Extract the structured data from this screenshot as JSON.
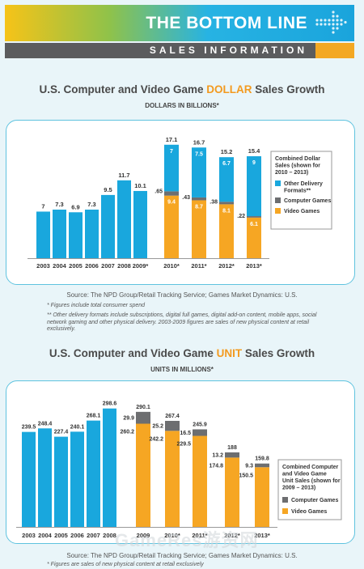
{
  "header": {
    "title": "THE BOTTOM LINE",
    "subtitle": "SALES INFORMATION"
  },
  "colors": {
    "blue": "#19a7dd",
    "orange": "#f6a623",
    "gray": "#6d6e70",
    "frame": "#5fc3df"
  },
  "chart1": {
    "title_pre": "U.S. Computer and Video Game ",
    "title_hl": "DOLLAR",
    "title_post": " Sales Growth",
    "subtitle": "DOLLARS IN BILLIONS*",
    "source": "Source: The NPD Group/Retail Tracking Service; Games Market Dynamics: U.S.",
    "note1": "*  Figures include total consumer spend",
    "note2": "**  Other delivery formats include subscriptions, digital full games, digital add-on content, mobile apps, social network gaming and other physical delivery. 2003-2009 figures are sales of new physical content at retail exclusively.",
    "legend": {
      "title": "Combined Dollar Sales (shown for 2010 – 2013)",
      "items": [
        {
          "label": "Other Delivery Formats**",
          "color": "#19a7dd"
        },
        {
          "label": "Computer Games",
          "color": "#6d6e70"
        },
        {
          "label": "Video Games",
          "color": "#f6a623"
        }
      ]
    }
  },
  "chart2": {
    "title_pre": "U.S. Computer and Video Game ",
    "title_hl": "UNIT",
    "title_post": " Sales Growth",
    "subtitle": "UNITS IN MILLIONS*",
    "source": "Source: The NPD Group/Retail Tracking Service; Games Market Dynamics: U.S.",
    "note1": "*  Figures are sales of new physical content at retail exclusively",
    "legend": {
      "title": "Combined Computer and Video Game Unit Sales (shown for 2009 – 2013)",
      "items": [
        {
          "label": "Computer Games",
          "color": "#6d6e70"
        },
        {
          "label": "Video Games",
          "color": "#f6a623"
        }
      ]
    }
  },
  "watermark": "GameRes游资网",
  "chart_data": [
    {
      "type": "bar",
      "title": "U.S. Computer and Video Game DOLLAR Sales Growth",
      "ylabel": "DOLLARS IN BILLIONS*",
      "ylim": [
        0,
        18
      ],
      "categories": [
        "2003",
        "2004",
        "2005",
        "2006",
        "2007",
        "2008",
        "2009*",
        "2010*",
        "2011*",
        "2012*",
        "2013*"
      ],
      "totals": [
        "7",
        "7.3",
        "6.9",
        "7.3",
        "9.5",
        "11.7",
        "10.1",
        "17.1",
        "16.7",
        "15.2",
        "15.4"
      ],
      "series": [
        {
          "name": "Total",
          "values": [
            7,
            7.3,
            6.9,
            7.3,
            9.5,
            11.7,
            10.1,
            null,
            null,
            null,
            null
          ]
        },
        {
          "name": "Video Games",
          "values": [
            null,
            null,
            null,
            null,
            null,
            null,
            null,
            9.4,
            8.7,
            8.1,
            6.1
          ]
        },
        {
          "name": "Computer Games",
          "values": [
            null,
            null,
            null,
            null,
            null,
            null,
            null,
            0.65,
            0.43,
            0.38,
            0.22
          ]
        },
        {
          "name": "Other Delivery Formats**",
          "values": [
            null,
            null,
            null,
            null,
            null,
            null,
            null,
            7,
            7.5,
            6.7,
            9
          ]
        }
      ],
      "segment_labels": {
        "Video Games": [
          "9.4",
          "8.7",
          "8.1",
          "6.1"
        ],
        "Computer Games": [
          ".65",
          ".43",
          ".38",
          ".22"
        ],
        "Other Delivery Formats**": [
          "7",
          "7.5",
          "6.7",
          "9"
        ]
      }
    },
    {
      "type": "bar",
      "title": "U.S. Computer and Video Game UNIT Sales Growth",
      "ylabel": "UNITS IN MILLIONS*",
      "ylim": [
        0,
        300
      ],
      "categories": [
        "2003",
        "2004",
        "2005",
        "2006",
        "2007",
        "2008",
        "2009",
        "2010*",
        "2011*",
        "2012*",
        "2013*"
      ],
      "totals": [
        "239.5",
        "248.4",
        "227.4",
        "240.1",
        "268.1",
        "298.6",
        "290.1",
        "267.4",
        "245.9",
        "188",
        "159.8"
      ],
      "series": [
        {
          "name": "Total",
          "values": [
            239.5,
            248.4,
            227.4,
            240.1,
            268.1,
            298.6,
            null,
            null,
            null,
            null,
            null
          ]
        },
        {
          "name": "Video Games",
          "values": [
            null,
            null,
            null,
            null,
            null,
            null,
            260.2,
            242.2,
            229.5,
            174.8,
            150.5
          ]
        },
        {
          "name": "Computer Games",
          "values": [
            null,
            null,
            null,
            null,
            null,
            null,
            29.9,
            25.2,
            16.5,
            13.2,
            9.3
          ]
        }
      ]
    }
  ]
}
